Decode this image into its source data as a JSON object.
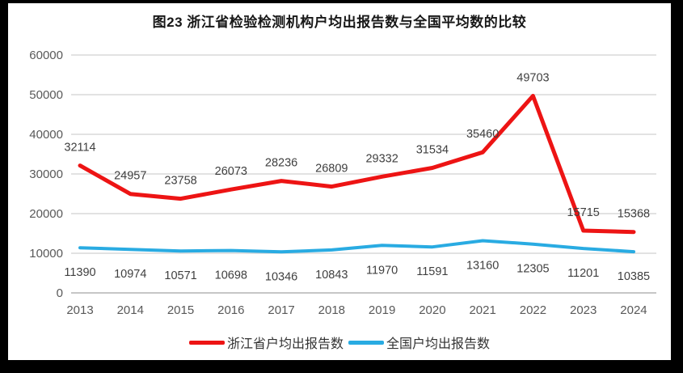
{
  "title": "图23  浙江省检验检测机构户均出报告数与全国平均数的比较",
  "chart_data": {
    "type": "line",
    "title": "图23  浙江省检验检测机构户均出报告数与全国平均数的比较",
    "categories": [
      "2013",
      "2014",
      "2015",
      "2016",
      "2017",
      "2018",
      "2019",
      "2020",
      "2021",
      "2022",
      "2023",
      "2024"
    ],
    "series": [
      {
        "name": "浙江省户均出报告数",
        "color": "#ed1414",
        "label_position": "above",
        "values": [
          32114,
          24957,
          23758,
          26073,
          28236,
          26809,
          29332,
          31534,
          35460,
          49703,
          15715,
          15368
        ]
      },
      {
        "name": "全国户均出报告数",
        "color": "#29abe2",
        "label_position": "below",
        "values": [
          11390,
          10974,
          10571,
          10698,
          10346,
          10843,
          11970,
          11591,
          13160,
          12305,
          11201,
          10385
        ]
      }
    ],
    "ylim": [
      0,
      60000
    ],
    "ytick_step": 10000,
    "yticks": [
      0,
      10000,
      20000,
      30000,
      40000,
      50000,
      60000
    ],
    "grid": true,
    "legend_position": "bottom",
    "colors": {
      "gridline": "#d9d9d9",
      "axis_line": "#b3b3b3",
      "axis_text": "#595959",
      "data_label_text": "#3f3f3f"
    }
  },
  "legend": {
    "items": [
      {
        "label": "浙江省户均出报告数",
        "color": "#ed1414"
      },
      {
        "label": "全国户均出报告数",
        "color": "#29abe2"
      }
    ]
  }
}
